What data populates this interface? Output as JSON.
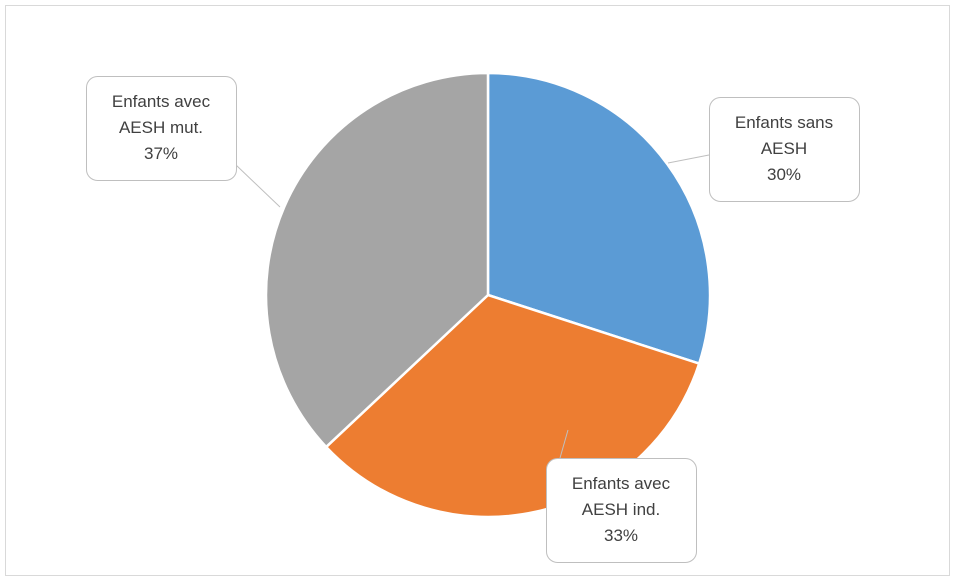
{
  "chart_data": {
    "type": "pie",
    "categories": [
      "Enfants sans AESH",
      "Enfants avec AESH ind.",
      "Enfants avec AESH mut."
    ],
    "values": [
      30,
      33,
      37
    ],
    "value_labels": [
      "30%",
      "33%",
      "37%"
    ],
    "colors": [
      "#5b9bd5",
      "#ed7d31",
      "#a5a5a5"
    ]
  }
}
